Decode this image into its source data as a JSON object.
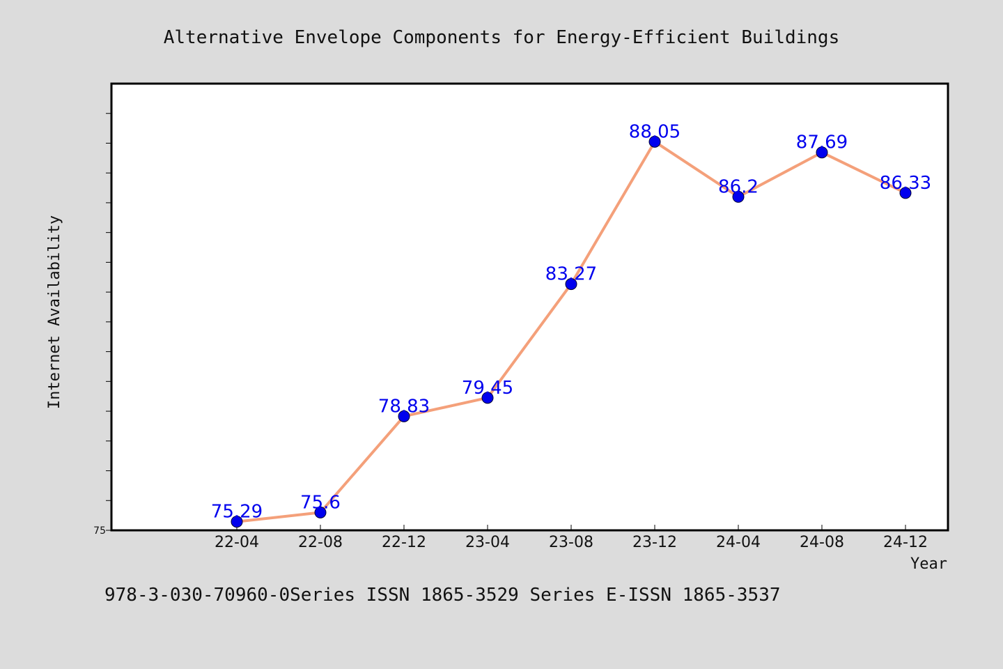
{
  "colors": {
    "background": "#dcdcdc",
    "plot_background": "#ffffff",
    "line": "#f4a07a",
    "marker": "#0000ee",
    "data_label": "#0000ee"
  },
  "footer_text": "978-3-030-70960-0Series ISSN 1865-3529 Series E-ISSN 1865-3537",
  "chart_data": {
    "type": "line",
    "title": "Alternative Envelope Components for Energy-Efficient Buildings",
    "xlabel": "Year",
    "ylabel": "Internet Availability",
    "categories": [
      "22-04",
      "22-08",
      "22-12",
      "23-04",
      "23-08",
      "23-12",
      "24-04",
      "24-08",
      "24-12"
    ],
    "series": [
      {
        "values": [
          75.29,
          75.6,
          78.83,
          79.45,
          83.27,
          88.05,
          86.2,
          87.69,
          86.33
        ],
        "labels": [
          "75.29",
          "75.6",
          "78.83",
          "79.45",
          "83.27",
          "88.05",
          "86.2",
          "87.69",
          "86.33"
        ]
      }
    ],
    "ylim": [
      75,
      90
    ],
    "yticks_labeled": [
      "75"
    ],
    "grid": false,
    "legend": false
  }
}
